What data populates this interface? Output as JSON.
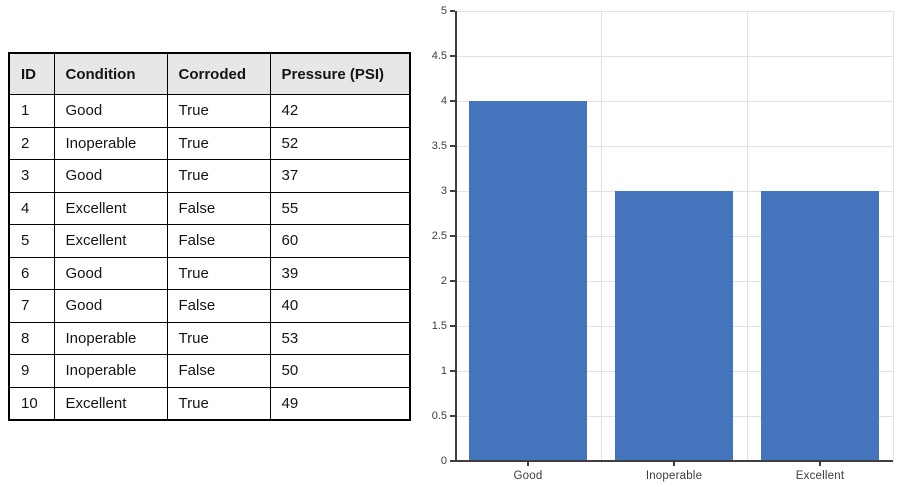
{
  "table": {
    "headers": [
      "ID",
      "Condition",
      "Corroded",
      "Pressure (PSI)"
    ],
    "rows": [
      [
        "1",
        "Good",
        "True",
        "42"
      ],
      [
        "2",
        "Inoperable",
        "True",
        "52"
      ],
      [
        "3",
        "Good",
        "True",
        "37"
      ],
      [
        "4",
        "Excellent",
        "False",
        "55"
      ],
      [
        "5",
        "Excellent",
        "False",
        "60"
      ],
      [
        "6",
        "Good",
        "True",
        "39"
      ],
      [
        "7",
        "Good",
        "False",
        "40"
      ],
      [
        "8",
        "Inoperable",
        "True",
        "53"
      ],
      [
        "9",
        "Inoperable",
        "False",
        "50"
      ],
      [
        "10",
        "Excellent",
        "True",
        "49"
      ]
    ],
    "header_bg": "#e7e7e7",
    "border_color": "#000000"
  },
  "chart_data": {
    "type": "bar",
    "categories": [
      "Good",
      "Inoperable",
      "Excellent"
    ],
    "values": [
      4,
      3,
      3
    ],
    "title": "",
    "xlabel": "",
    "ylabel": "",
    "ylim": [
      0,
      5
    ],
    "ytick_step": 0.5,
    "yticks": [
      "0",
      "0.5",
      "1",
      "1.5",
      "2",
      "2.5",
      "3",
      "3.5",
      "4",
      "4.5",
      "5"
    ],
    "grid": true,
    "legend": false,
    "bar_color": "#4374bc",
    "grid_color": "#e2e2e2",
    "axis_color": "#3f3f3f"
  }
}
